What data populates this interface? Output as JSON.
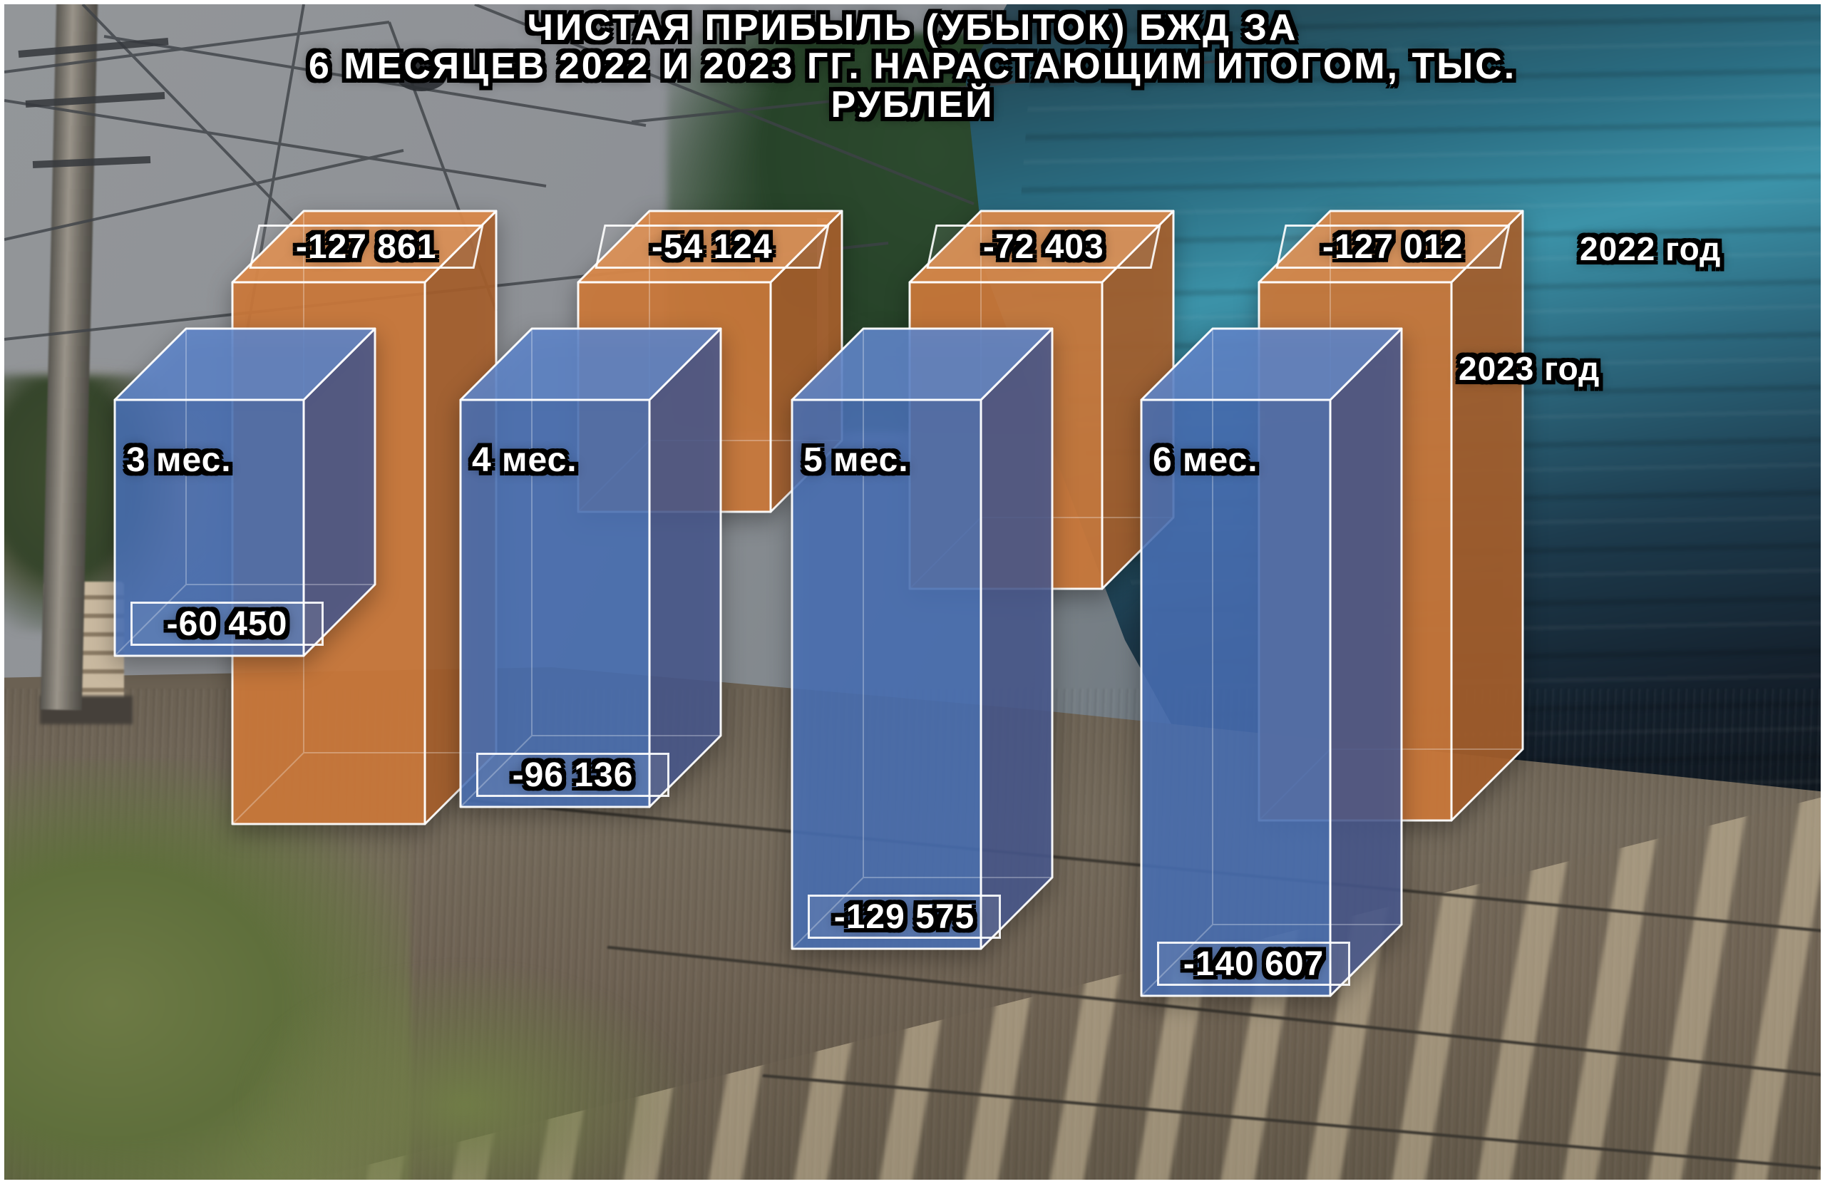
{
  "title": {
    "lines": [
      "ЧИСТАЯ ПРИБЫЛЬ (УБЫТОК) БЖД ЗА",
      "6 МЕСЯЦЕВ 2022 И 2023 ГГ. НАРАСТАЮЩИМ ИТОГОМ, ТЫС.",
      "РУБЛЕЙ"
    ]
  },
  "chart_data": {
    "type": "bar",
    "style": "3d-columns-downward",
    "title": "ЧИСТАЯ ПРИБЫЛЬ (УБЫТОК) БЖД ЗА 6 МЕСЯЦЕВ 2022 И 2023 ГГ. НАРАСТАЮЩИМ ИТОГОМ, ТЫС. РУБЛЕЙ",
    "unit": "тыс. рублей",
    "categories": [
      "3 мес.",
      "4 мес.",
      "5 мес.",
      "6 мес."
    ],
    "series": [
      {
        "name": "2022 год",
        "color": "#cd7a3b",
        "values": [
          -127861,
          -54124,
          -72403,
          -127012
        ],
        "labels": [
          "-127 861",
          "-54 124",
          "-72 403",
          "-127 012"
        ]
      },
      {
        "name": "2023 год",
        "color": "#4a72b8",
        "values": [
          -60450,
          -96136,
          -129575,
          -140607
        ],
        "labels": [
          "-60 450",
          "-96 136",
          "-129 575",
          "-140 607"
        ]
      }
    ],
    "legend_position": "right",
    "grid": false
  },
  "colors": {
    "orange_front": "#cd7a3b",
    "orange_top": "#d8884a",
    "orange_side": "#a8602c",
    "blue_front": "#4a72b8",
    "blue_top": "#5f85c8",
    "blue_side": "#49598f",
    "edge": "#ffffff",
    "text": "#ffffff",
    "text_outline": "#000000"
  }
}
